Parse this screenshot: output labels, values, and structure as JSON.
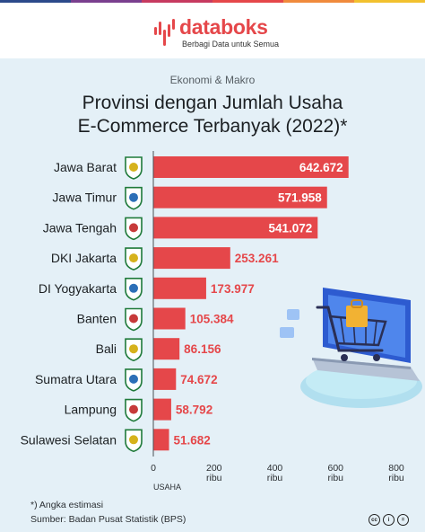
{
  "brand": {
    "name": "databoks",
    "tagline": "Berbagi Data untuk Semua",
    "accent_color": "#e5474a",
    "strip_colors": [
      "#2c4a8a",
      "#7a3f8e",
      "#c73a60",
      "#e5474a",
      "#f08a3c",
      "#f2c12e"
    ]
  },
  "category": "Ekonomi & Makro",
  "title_lines": [
    "Provinsi dengan Jumlah Usaha",
    "E-Commerce Terbanyak (2022)*"
  ],
  "footnote": "*) Angka estimasi",
  "source": "Sumber: Badan Pusat Statistik (BPS)",
  "license_icons": [
    "cc-icon",
    "by-icon",
    "equal-icon"
  ],
  "license_labels": [
    "cc",
    "i",
    "="
  ],
  "chart_data": {
    "type": "bar",
    "orientation": "horizontal",
    "title": "Provinsi dengan Jumlah Usaha E-Commerce Terbanyak (2022)*",
    "categories": [
      "Jawa Barat",
      "Jawa Timur",
      "Jawa Tengah",
      "DKI Jakarta",
      "DI Yogyakarta",
      "Banten",
      "Bali",
      "Sumatra Utara",
      "Lampung",
      "Sulawesi Selatan"
    ],
    "values": [
      642672,
      571958,
      541072,
      253261,
      173977,
      105384,
      86156,
      74672,
      58792,
      51682
    ],
    "value_labels": [
      "642.672",
      "571.958",
      "541.072",
      "253.261",
      "173.977",
      "105.384",
      "86.156",
      "74.672",
      "58.792",
      "51.682"
    ],
    "xlim": [
      0,
      800000
    ],
    "ticks": [
      0,
      200000,
      400000,
      600000,
      800000
    ],
    "tick_labels": [
      "0",
      "200",
      "400",
      "600",
      "800"
    ],
    "tick_sublabel": "ribu",
    "xlabel": "USAHA",
    "ylabel": "",
    "bar_color": "#e5474a",
    "grid": false,
    "legend": "none",
    "province_emblem_icons": [
      "jawa-barat-emblem-icon",
      "jawa-timur-emblem-icon",
      "jawa-tengah-emblem-icon",
      "dki-jakarta-emblem-icon",
      "di-yogyakarta-emblem-icon",
      "banten-emblem-icon",
      "bali-emblem-icon",
      "sumatra-utara-emblem-icon",
      "lampung-emblem-icon",
      "sulawesi-selatan-emblem-icon"
    ]
  },
  "illustration_icon": "laptop-shopping-cart-icon"
}
